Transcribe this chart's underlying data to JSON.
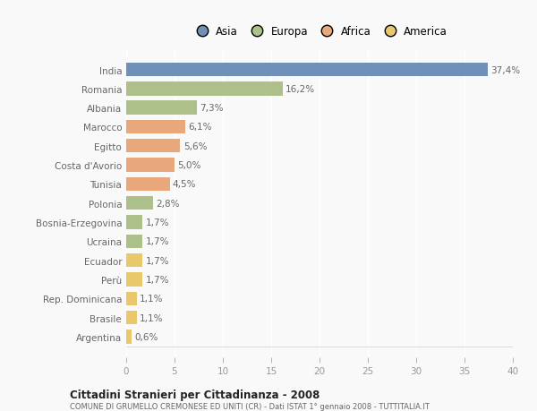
{
  "categories": [
    "India",
    "Romania",
    "Albania",
    "Marocco",
    "Egitto",
    "Costa d'Avorio",
    "Tunisia",
    "Polonia",
    "Bosnia-Erzegovina",
    "Ucraina",
    "Ecuador",
    "Perù",
    "Rep. Dominicana",
    "Brasile",
    "Argentina"
  ],
  "values": [
    37.4,
    16.2,
    7.3,
    6.1,
    5.6,
    5.0,
    4.5,
    2.8,
    1.7,
    1.7,
    1.7,
    1.7,
    1.1,
    1.1,
    0.6
  ],
  "labels": [
    "37,4%",
    "16,2%",
    "7,3%",
    "6,1%",
    "5,6%",
    "5,0%",
    "4,5%",
    "2,8%",
    "1,7%",
    "1,7%",
    "1,7%",
    "1,7%",
    "1,1%",
    "1,1%",
    "0,6%"
  ],
  "colors": [
    "#7090b8",
    "#adc08a",
    "#adc08a",
    "#e8a87c",
    "#e8a87c",
    "#e8a87c",
    "#e8a87c",
    "#adc08a",
    "#adc08a",
    "#adc08a",
    "#e8c86a",
    "#e8c86a",
    "#e8c86a",
    "#e8c86a",
    "#e8c86a"
  ],
  "continent_colors": {
    "Asia": "#7090b8",
    "Europa": "#adc08a",
    "Africa": "#e8a87c",
    "America": "#e8c86a"
  },
  "legend_order": [
    "Asia",
    "Europa",
    "Africa",
    "America"
  ],
  "title": "Cittadini Stranieri per Cittadinanza - 2008",
  "subtitle": "COMUNE DI GRUMELLO CREMONESE ED UNITI (CR) - Dati ISTAT 1° gennaio 2008 - TUTTITALIA.IT",
  "xlim": [
    0,
    40
  ],
  "xticks": [
    0,
    5,
    10,
    15,
    20,
    25,
    30,
    35,
    40
  ],
  "background_color": "#f9f9f9",
  "bar_height": 0.72,
  "label_fontsize": 7.5,
  "tick_fontsize": 7.5,
  "ytick_fontsize": 7.5
}
